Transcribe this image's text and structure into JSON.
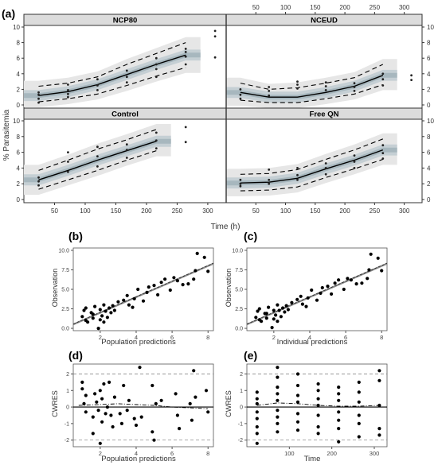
{
  "panels": {
    "a": {
      "label": "(a)"
    },
    "b": {
      "label": "(b)"
    },
    "c": {
      "label": "(c)"
    },
    "d": {
      "label": "(d)"
    },
    "e": {
      "label": "(e)"
    }
  },
  "colors": {
    "outer_band": "#e6e6e6",
    "inner_band": "#c5cfd4",
    "median_band": "#9fb0b8",
    "strip": "#dcdcdc",
    "line": "#000000",
    "identity_line": "#8a8a8a"
  },
  "chart_data": [
    {
      "id": "a",
      "type": "line",
      "subtype": "visual-predictive-check",
      "ylabel": "% Parasitemia",
      "xlabel": "Time (h)",
      "xlim": [
        0,
        330
      ],
      "ylim": [
        0,
        10
      ],
      "x_ticks": [
        50,
        100,
        150,
        200,
        250,
        300
      ],
      "y_ticks": [
        0,
        2,
        4,
        6,
        8,
        10
      ],
      "facets": [
        {
          "name": "NCP80",
          "median": {
            "x": [
              24,
              72,
              120,
              168,
              216,
              264
            ],
            "y": [
              1.2,
              1.7,
              2.6,
              3.9,
              5.2,
              6.4
            ]
          },
          "p5": {
            "x": [
              24,
              72,
              120,
              168,
              216,
              264
            ],
            "y": [
              0.4,
              0.8,
              1.4,
              2.5,
              3.7,
              4.8
            ]
          },
          "p95": {
            "x": [
              24,
              72,
              120,
              168,
              216,
              264
            ],
            "y": [
              2.4,
              2.8,
              3.6,
              5.2,
              6.6,
              8.0
            ]
          },
          "observed": {
            "x": [
              24,
              24,
              24,
              24,
              72,
              72,
              72,
              72,
              120,
              120,
              120,
              168,
              168,
              168,
              216,
              216,
              216,
              216,
              264,
              264,
              264,
              264,
              312,
              312,
              312
            ],
            "y": [
              0.8,
              1.3,
              1.6,
              0.3,
              1.0,
              1.9,
              2.6,
              1.4,
              1.9,
              2.5,
              3.3,
              2.9,
              3.6,
              4.4,
              3.6,
              4.6,
              5.2,
              6.0,
              5.2,
              6.2,
              7.2,
              6.8,
              6.1,
              8.8,
              9.5
            ]
          }
        },
        {
          "name": "NCEUD",
          "median": {
            "x": [
              24,
              72,
              120,
              168,
              216,
              264
            ],
            "y": [
              1.6,
              1.0,
              1.0,
              1.6,
              2.4,
              3.8
            ]
          },
          "p5": {
            "x": [
              24,
              72,
              120,
              168,
              216,
              264
            ],
            "y": [
              0.6,
              0.3,
              0.3,
              0.8,
              1.4,
              2.6
            ]
          },
          "p95": {
            "x": [
              24,
              72,
              120,
              168,
              216,
              264
            ],
            "y": [
              2.8,
              2.0,
              2.2,
              2.8,
              3.5,
              5.2
            ]
          },
          "observed": {
            "x": [
              24,
              24,
              24,
              72,
              72,
              72,
              120,
              120,
              120,
              168,
              168,
              168,
              216,
              216,
              216,
              264,
              264,
              264,
              312,
              312
            ],
            "y": [
              0.8,
              1.3,
              2.0,
              1.2,
              1.8,
              2.3,
              2.1,
              2.6,
              3.0,
              1.9,
              2.4,
              2.9,
              1.8,
              2.3,
              2.8,
              2.5,
              3.3,
              4.0,
              3.2,
              3.8
            ]
          }
        },
        {
          "name": "Control",
          "median": {
            "x": [
              24,
              72,
              120,
              168,
              216
            ],
            "y": [
              2.5,
              3.7,
              5.0,
              6.2,
              7.4
            ]
          },
          "p5": {
            "x": [
              24,
              72,
              120,
              168,
              216
            ],
            "y": [
              1.3,
              2.5,
              3.7,
              5.0,
              6.2
            ]
          },
          "p95": {
            "x": [
              24,
              72,
              120,
              168,
              216
            ],
            "y": [
              3.7,
              5.0,
              6.4,
              7.6,
              8.9
            ]
          },
          "observed": {
            "x": [
              24,
              24,
              24,
              72,
              72,
              72,
              120,
              120,
              120,
              168,
              168,
              168,
              216,
              216,
              216,
              264,
              264
            ],
            "y": [
              1.8,
              2.3,
              2.8,
              3.5,
              4.8,
              6.0,
              4.2,
              5.5,
              6.7,
              5.3,
              6.3,
              7.0,
              6.5,
              7.5,
              8.5,
              7.3,
              9.2
            ]
          }
        },
        {
          "name": "Free QN",
          "median": {
            "x": [
              24,
              72,
              120,
              168,
              216,
              264
            ],
            "y": [
              2.1,
              2.2,
              2.7,
              3.9,
              5.0,
              6.3
            ]
          },
          "p5": {
            "x": [
              24,
              72,
              120,
              168,
              216,
              264
            ],
            "y": [
              1.1,
              1.2,
              1.6,
              2.8,
              3.9,
              5.1
            ]
          },
          "p95": {
            "x": [
              24,
              72,
              120,
              168,
              216,
              264
            ],
            "y": [
              3.2,
              3.3,
              3.8,
              5.1,
              6.3,
              7.7
            ]
          },
          "observed": {
            "x": [
              24,
              24,
              24,
              72,
              72,
              72,
              120,
              120,
              120,
              168,
              168,
              168,
              216,
              216,
              216,
              264,
              264,
              264
            ],
            "y": [
              1.7,
              2.0,
              2.5,
              2.0,
              2.5,
              3.8,
              2.5,
              3.1,
              4.0,
              3.2,
              4.0,
              4.6,
              4.0,
              4.8,
              5.6,
              5.2,
              5.9,
              6.9
            ]
          }
        }
      ]
    },
    {
      "id": "b",
      "type": "scatter",
      "xlabel": "Population predictions",
      "ylabel": "Observation",
      "xlim": [
        0.5,
        8.3
      ],
      "ylim": [
        -0.3,
        10.3
      ],
      "x_ticks": [
        2,
        4,
        6,
        8
      ],
      "y_ticks": [
        0.0,
        2.5,
        5.0,
        7.5,
        10.0
      ],
      "y_tick_labels": [
        "0.0",
        "2.5",
        "5.0",
        "7.5",
        "10.0"
      ],
      "identity_line": true,
      "points": {
        "x": [
          1.0,
          1.1,
          1.2,
          1.2,
          1.3,
          1.5,
          1.6,
          1.6,
          1.7,
          1.9,
          2.0,
          2.0,
          2.1,
          2.2,
          2.2,
          2.3,
          2.4,
          2.5,
          2.6,
          2.7,
          2.8,
          3.0,
          3.3,
          3.5,
          3.6,
          3.8,
          3.9,
          4.1,
          4.4,
          4.6,
          4.7,
          5.0,
          5.2,
          5.4,
          5.6,
          5.9,
          6.1,
          6.3,
          6.6,
          6.9,
          7.2,
          7.3,
          7.4,
          7.8,
          8.0
        ],
        "y": [
          1.5,
          2.3,
          1.0,
          2.6,
          0.8,
          2.0,
          1.3,
          1.8,
          2.8,
          0.0,
          1.1,
          2.4,
          1.6,
          3.0,
          0.8,
          2.2,
          1.4,
          2.6,
          2.0,
          2.9,
          2.3,
          3.4,
          3.6,
          4.2,
          3.0,
          2.7,
          3.8,
          5.0,
          3.5,
          4.6,
          5.3,
          5.5,
          4.3,
          5.9,
          6.3,
          4.9,
          6.5,
          6.1,
          5.6,
          5.7,
          6.3,
          7.4,
          9.6,
          9.1,
          7.3
        ]
      }
    },
    {
      "id": "c",
      "type": "scatter",
      "xlabel": "Individual predictions",
      "ylabel": "Observation",
      "xlim": [
        0.5,
        8.3
      ],
      "ylim": [
        -0.3,
        10.3
      ],
      "x_ticks": [
        2,
        4,
        6,
        8
      ],
      "y_ticks": [
        0.0,
        2.5,
        5.0,
        7.5,
        10.0
      ],
      "y_tick_labels": [
        "0.0",
        "2.5",
        "5.0",
        "7.5",
        "10.0"
      ],
      "identity_line": true,
      "points": {
        "x": [
          1.0,
          1.1,
          1.2,
          1.2,
          1.3,
          1.5,
          1.6,
          1.6,
          1.7,
          1.9,
          2.0,
          2.0,
          2.1,
          2.2,
          2.2,
          2.3,
          2.4,
          2.5,
          2.6,
          2.7,
          2.8,
          3.0,
          3.3,
          3.5,
          3.6,
          3.8,
          3.9,
          4.1,
          4.4,
          4.6,
          4.7,
          5.0,
          5.2,
          5.4,
          5.6,
          5.9,
          6.1,
          6.3,
          6.6,
          6.9,
          7.2,
          7.3,
          7.4,
          7.8,
          8.0
        ],
        "y": [
          1.4,
          2.2,
          1.1,
          2.5,
          0.9,
          1.9,
          1.3,
          1.9,
          2.7,
          0.1,
          1.2,
          2.3,
          1.7,
          3.0,
          0.9,
          2.3,
          1.5,
          2.6,
          2.1,
          2.9,
          2.4,
          3.3,
          3.7,
          4.1,
          3.1,
          2.8,
          3.9,
          4.9,
          3.6,
          4.5,
          5.2,
          5.4,
          4.4,
          5.8,
          6.2,
          5.0,
          6.4,
          6.2,
          5.7,
          5.8,
          6.4,
          7.5,
          9.5,
          9.0,
          7.4
        ]
      }
    },
    {
      "id": "d",
      "type": "scatter",
      "xlabel": "Population predictions",
      "ylabel": "CWRES",
      "xlim": [
        0.5,
        8.3
      ],
      "ylim": [
        -2.4,
        2.6
      ],
      "x_ticks": [
        2,
        4,
        6,
        8
      ],
      "y_ticks": [
        -2,
        -1,
        0,
        1,
        2
      ],
      "reference_lines": [
        -2,
        0,
        2
      ],
      "trend": {
        "x": [
          0.8,
          2,
          3,
          4,
          5,
          6,
          7,
          8
        ],
        "y": [
          0.1,
          0.15,
          0.2,
          0.15,
          0.1,
          0.0,
          -0.05,
          -0.1
        ]
      },
      "points": {
        "x": [
          1.0,
          1.0,
          1.1,
          1.2,
          1.2,
          1.6,
          1.6,
          1.7,
          1.8,
          1.9,
          2.0,
          2.0,
          2.1,
          2.1,
          2.2,
          2.3,
          2.4,
          2.5,
          2.6,
          2.7,
          2.8,
          3.1,
          3.2,
          3.3,
          3.5,
          3.6,
          3.9,
          4.0,
          4.2,
          4.3,
          4.9,
          4.9,
          5.0,
          5.1,
          5.4,
          6.2,
          6.3,
          6.4,
          7.0,
          7.1,
          7.2,
          7.3,
          7.9,
          8.0
        ],
        "y": [
          1.5,
          1.1,
          0.2,
          -0.3,
          0.7,
          -0.6,
          -1.6,
          0.8,
          0.3,
          -0.2,
          -2.2,
          1.0,
          -0.9,
          0.5,
          1.4,
          -0.4,
          0.0,
          1.5,
          -0.5,
          -1.2,
          0.6,
          -0.4,
          -1.0,
          1.3,
          -0.2,
          0.4,
          -0.7,
          -1.1,
          2.4,
          -0.6,
          1.3,
          -1.5,
          -2.0,
          0.2,
          0.4,
          0.8,
          -0.5,
          -1.3,
          0.2,
          -0.8,
          2.2,
          0.6,
          1.0,
          -0.3
        ]
      }
    },
    {
      "id": "e",
      "type": "scatter",
      "xlabel": "Time",
      "ylabel": "CWRES",
      "xlim": [
        0,
        330
      ],
      "ylim": [
        -2.4,
        2.6
      ],
      "x_ticks": [
        100,
        200,
        300
      ],
      "y_ticks": [
        -2,
        -1,
        0,
        1,
        2
      ],
      "reference_lines": [
        -2,
        0,
        2
      ],
      "trend": {
        "x": [
          24,
          72,
          120,
          168,
          216,
          264,
          312
        ],
        "y": [
          0.1,
          0.25,
          0.2,
          0.1,
          0.05,
          0.05,
          0.1
        ]
      },
      "points": {
        "x": [
          24,
          24,
          24,
          24,
          24,
          24,
          24,
          24,
          72,
          72,
          72,
          72,
          72,
          72,
          72,
          72,
          72,
          120,
          120,
          120,
          120,
          120,
          120,
          120,
          168,
          168,
          168,
          168,
          168,
          168,
          168,
          216,
          216,
          216,
          216,
          216,
          216,
          216,
          264,
          264,
          264,
          264,
          264,
          264,
          312,
          312,
          312,
          312,
          312
        ],
        "y": [
          0.2,
          0.5,
          -0.3,
          -0.7,
          -1.2,
          -1.6,
          -2.2,
          0.9,
          2.4,
          1.8,
          1.2,
          0.8,
          0.4,
          -0.2,
          -0.6,
          -1.0,
          -1.5,
          2.0,
          1.3,
          0.7,
          0.3,
          -0.4,
          -0.9,
          -1.4,
          1.4,
          1.0,
          0.5,
          0.1,
          -0.5,
          -1.2,
          -1.6,
          1.2,
          0.8,
          0.4,
          -0.3,
          -0.8,
          -1.3,
          -2.1,
          1.5,
          0.9,
          0.3,
          -0.5,
          -1.0,
          -1.8,
          2.2,
          1.6,
          0.1,
          -1.3,
          -1.7
        ]
      }
    }
  ]
}
